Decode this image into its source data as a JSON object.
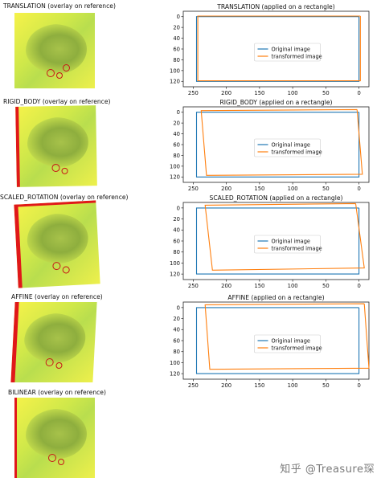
{
  "left_panels": [
    {
      "title": "TRANSLATION (overlay on reference)"
    },
    {
      "title": "RIGID_BODY (overlay on reference)"
    },
    {
      "title": "SCALED_ROTATION (overlay on reference)"
    },
    {
      "title": "AFFINE (overlay on reference)"
    },
    {
      "title": "BILINEAR (overlay on reference)"
    }
  ],
  "watermark": "知乎 @Treasure琛",
  "colors": {
    "original": "#1f77b4",
    "transformed": "#ff7f0e"
  },
  "chart_data": [
    {
      "type": "line",
      "title": "TRANSLATION (applied on a rectangle)",
      "xlim": [
        265,
        -15
      ],
      "ylim": [
        130,
        -10
      ],
      "xticks": [
        250,
        200,
        150,
        100,
        50,
        0
      ],
      "yticks": [
        0,
        20,
        40,
        60,
        80,
        100,
        120
      ],
      "legend": "center",
      "series": [
        {
          "name": "Original image",
          "x": [
            0,
            245,
            245,
            0,
            0
          ],
          "y": [
            0,
            0,
            120,
            120,
            0
          ]
        },
        {
          "name": "transformed image",
          "x": [
            -2,
            243,
            243,
            -2,
            -2
          ],
          "y": [
            -1,
            -1,
            119,
            119,
            -1
          ]
        }
      ]
    },
    {
      "type": "line",
      "title": "RIGID_BODY (applied on a rectangle)",
      "xlim": [
        265,
        -15
      ],
      "ylim": [
        130,
        -10
      ],
      "xticks": [
        250,
        200,
        150,
        100,
        50,
        0
      ],
      "yticks": [
        0,
        20,
        40,
        60,
        80,
        100,
        120
      ],
      "legend": "center",
      "series": [
        {
          "name": "Original image",
          "x": [
            0,
            245,
            245,
            0,
            0
          ],
          "y": [
            0,
            0,
            120,
            120,
            0
          ]
        },
        {
          "name": "transformed image",
          "x": [
            3,
            238,
            230,
            -5,
            3
          ],
          "y": [
            -5,
            -3,
            117,
            115,
            -5
          ]
        }
      ]
    },
    {
      "type": "line",
      "title": "SCALED_ROTATION (applied on a rectangle)",
      "xlim": [
        265,
        -15
      ],
      "ylim": [
        130,
        -10
      ],
      "xticks": [
        250,
        200,
        150,
        100,
        50,
        0
      ],
      "yticks": [
        0,
        20,
        40,
        60,
        80,
        100,
        120
      ],
      "legend": "center",
      "series": [
        {
          "name": "Original image",
          "x": [
            0,
            245,
            245,
            0,
            0
          ],
          "y": [
            0,
            0,
            120,
            120,
            0
          ]
        },
        {
          "name": "transformed image",
          "x": [
            5,
            232,
            221,
            -8,
            5
          ],
          "y": [
            -8,
            -5,
            113,
            109,
            -8
          ]
        }
      ]
    },
    {
      "type": "line",
      "title": "AFFINE (applied on a rectangle)",
      "xlim": [
        265,
        -15
      ],
      "ylim": [
        130,
        -10
      ],
      "xticks": [
        250,
        200,
        150,
        100,
        50,
        0
      ],
      "yticks": [
        0,
        20,
        40,
        60,
        80,
        100,
        120
      ],
      "legend": "center",
      "series": [
        {
          "name": "Original image",
          "x": [
            0,
            245,
            245,
            0,
            0
          ],
          "y": [
            0,
            0,
            120,
            120,
            0
          ]
        },
        {
          "name": "transformed image",
          "x": [
            -8,
            232,
            225,
            -15,
            -8
          ],
          "y": [
            -7,
            -5,
            112,
            110,
            -7
          ]
        }
      ]
    }
  ]
}
